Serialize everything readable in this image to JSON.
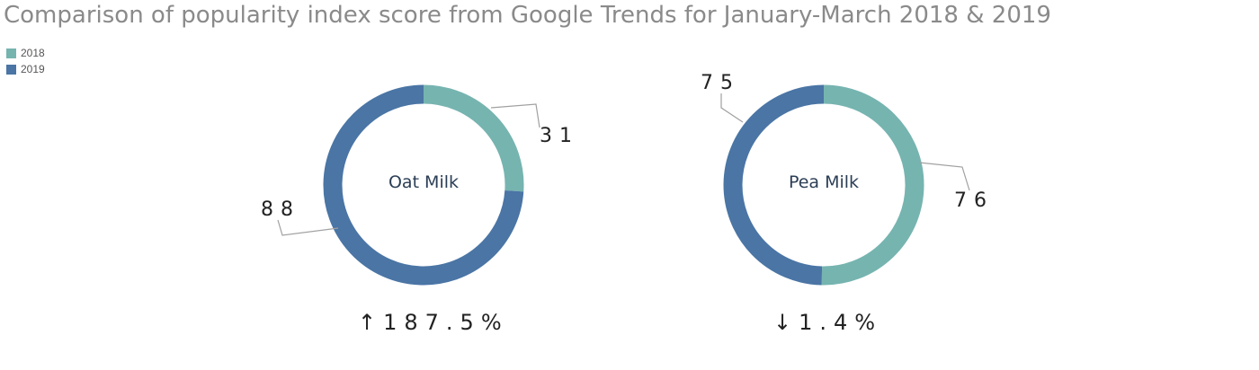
{
  "colors": {
    "y2018": "#76b4b0",
    "y2019": "#4a75a5",
    "leader": "#a0a0a0"
  },
  "chart_data": {
    "type": "pie",
    "variant": "donut",
    "title": "Comparison of popularity index score from Google Trends for January-March 2018 & 2019",
    "legend": {
      "placement": "top-left",
      "entries": [
        "2018",
        "2019"
      ]
    },
    "charts": [
      {
        "label": "Oat Milk",
        "series": [
          {
            "name": "2018",
            "value": 31
          },
          {
            "name": "2019",
            "value": 88
          }
        ],
        "change": "↑187.5%"
      },
      {
        "label": "Pea Milk",
        "series": [
          {
            "name": "2018",
            "value": 76
          },
          {
            "name": "2019",
            "value": 75
          }
        ],
        "change": "↓1.4%"
      }
    ]
  }
}
